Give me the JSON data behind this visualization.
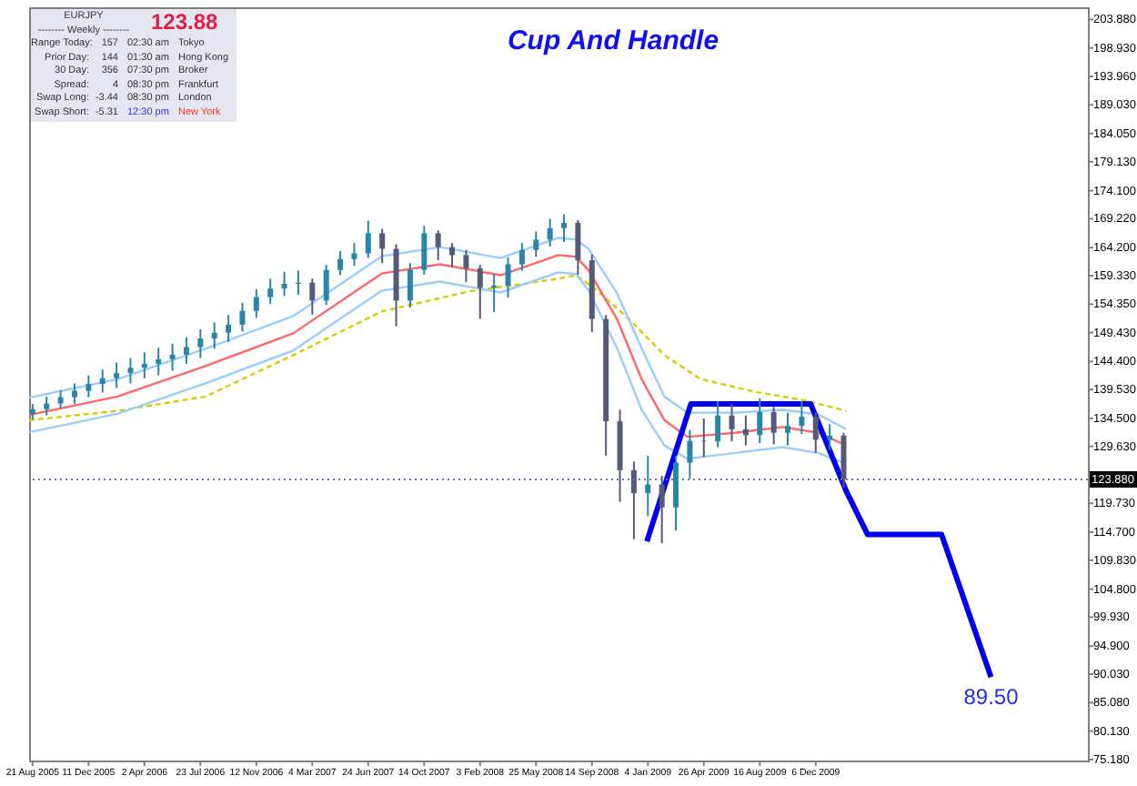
{
  "chart_data": {
    "type": "candlestick",
    "title": "Cup And Handle",
    "xlim": [
      "2005-08-14",
      "2011-06-04"
    ],
    "ylim": [
      75,
      206
    ],
    "xticks": [
      {
        "value": "2005-08-21",
        "label": "21 Aug 2005"
      },
      {
        "value": "2005-12-11",
        "label": "11 Dec 2005"
      },
      {
        "value": "2006-04-02",
        "label": "2 Apr 2006"
      },
      {
        "value": "2006-07-23",
        "label": "23 Jul 2006"
      },
      {
        "value": "2006-11-12",
        "label": "12 Nov 2006"
      },
      {
        "value": "2007-03-04",
        "label": "4 Mar 2007"
      },
      {
        "value": "2007-06-24",
        "label": "24 Jun 2007"
      },
      {
        "value": "2007-10-14",
        "label": "14 Oct 2007"
      },
      {
        "value": "2008-02-03",
        "label": "3 Feb 2008"
      },
      {
        "value": "2008-05-25",
        "label": "25 May 2008"
      },
      {
        "value": "2008-09-14",
        "label": "14 Sep 2008"
      },
      {
        "value": "2009-01-04",
        "label": "4 Jan 2009"
      },
      {
        "value": "2009-04-26",
        "label": "26 Apr 2009"
      },
      {
        "value": "2009-08-16",
        "label": "16 Aug 2009"
      },
      {
        "value": "2009-12-06",
        "label": "6 Dec 2009"
      }
    ],
    "yticks": [
      {
        "value": 203.88,
        "label": "203.880"
      },
      {
        "value": 198.93,
        "label": "198.930"
      },
      {
        "value": 193.96,
        "label": "193.960"
      },
      {
        "value": 189.03,
        "label": "189.030"
      },
      {
        "value": 184.05,
        "label": "184.050"
      },
      {
        "value": 179.13,
        "label": "179.130"
      },
      {
        "value": 174.1,
        "label": "174.100"
      },
      {
        "value": 169.22,
        "label": "169.220"
      },
      {
        "value": 164.2,
        "label": "164.200"
      },
      {
        "value": 159.33,
        "label": "159.330"
      },
      {
        "value": 154.35,
        "label": "154.350"
      },
      {
        "value": 149.43,
        "label": "149.430"
      },
      {
        "value": 144.4,
        "label": "144.400"
      },
      {
        "value": 139.53,
        "label": "139.530"
      },
      {
        "value": 134.5,
        "label": "134.500"
      },
      {
        "value": 129.63,
        "label": "129.630"
      },
      {
        "value": 119.73,
        "label": "119.730"
      },
      {
        "value": 114.7,
        "label": "114.700"
      },
      {
        "value": 109.83,
        "label": "109.830"
      },
      {
        "value": 104.8,
        "label": "104.800"
      },
      {
        "value": 99.93,
        "label": "99.930"
      },
      {
        "value": 94.9,
        "label": "94.900"
      },
      {
        "value": 90.03,
        "label": "90.030"
      },
      {
        "value": 85.08,
        "label": "85.080"
      },
      {
        "value": 80.13,
        "label": "80.130"
      },
      {
        "value": 75.18,
        "label": "75.180"
      }
    ],
    "x": [
      "2005-08-21",
      "2005-09-18",
      "2005-10-16",
      "2005-11-13",
      "2005-12-11",
      "2006-01-08",
      "2006-02-05",
      "2006-03-05",
      "2006-04-02",
      "2006-04-30",
      "2006-05-28",
      "2006-06-25",
      "2006-07-23",
      "2006-08-20",
      "2006-09-17",
      "2006-10-15",
      "2006-11-12",
      "2006-12-10",
      "2007-01-07",
      "2007-02-04",
      "2007-03-04",
      "2007-04-01",
      "2007-04-29",
      "2007-05-27",
      "2007-06-24",
      "2007-07-22",
      "2007-08-19",
      "2007-09-16",
      "2007-10-14",
      "2007-11-11",
      "2007-12-09",
      "2008-01-06",
      "2008-02-03",
      "2008-03-02",
      "2008-03-30",
      "2008-04-27",
      "2008-05-25",
      "2008-06-22",
      "2008-07-20",
      "2008-08-17",
      "2008-09-14",
      "2008-10-12",
      "2008-11-09",
      "2008-12-07",
      "2009-01-04",
      "2009-02-01",
      "2009-03-01",
      "2009-03-29",
      "2009-04-26",
      "2009-05-24",
      "2009-06-21",
      "2009-07-19",
      "2009-08-16",
      "2009-09-13",
      "2009-10-11",
      "2009-11-08",
      "2009-12-06",
      "2010-01-03",
      "2010-01-31"
    ],
    "ohlc": [
      [
        135.2,
        137.0,
        134.3,
        136.1
      ],
      [
        136.1,
        138.3,
        135.0,
        137.1
      ],
      [
        137.1,
        139.4,
        136.2,
        138.2
      ],
      [
        138.2,
        140.6,
        137.0,
        139.3
      ],
      [
        139.3,
        142.0,
        138.2,
        140.5
      ],
      [
        140.5,
        143.0,
        139.0,
        141.5
      ],
      [
        141.5,
        144.2,
        139.8,
        142.4
      ],
      [
        142.4,
        145.0,
        140.6,
        143.3
      ],
      [
        143.3,
        146.0,
        141.5,
        144
      ],
      [
        144,
        146.8,
        142.0,
        144.8
      ],
      [
        144.8,
        147.5,
        142.8,
        145.6
      ],
      [
        145.6,
        148.6,
        144.0,
        146.9
      ],
      [
        146.9,
        150.0,
        145.0,
        148.4
      ],
      [
        148.4,
        151.2,
        146.6,
        149.4
      ],
      [
        149.4,
        152.5,
        147.8,
        150.8
      ],
      [
        150.8,
        154.6,
        149.6,
        153.2
      ],
      [
        153.2,
        157.0,
        152.0,
        155.6
      ],
      [
        155.6,
        158.8,
        154.4,
        157.1
      ],
      [
        157.1,
        160.0,
        155.8,
        157.9
      ],
      [
        157.9,
        160.2,
        156.0,
        158.1
      ],
      [
        158.1,
        158.8,
        152.5,
        155
      ],
      [
        155,
        161.2,
        154.2,
        160.3
      ],
      [
        160.3,
        163.6,
        159.4,
        162.2
      ],
      [
        162.2,
        165.0,
        161.0,
        163.2
      ],
      [
        163.2,
        168.9,
        162.4,
        166.7
      ],
      [
        166.7,
        167.5,
        161.5,
        164
      ],
      [
        164,
        164.8,
        150.5,
        155
      ],
      [
        155,
        161.5,
        153.8,
        160.3
      ],
      [
        160.3,
        168.0,
        159.5,
        166.7
      ],
      [
        166.7,
        167.2,
        162.0,
        164.3
      ],
      [
        164.3,
        165.0,
        160.8,
        162.9
      ],
      [
        162.9,
        163.8,
        158.2,
        160.6
      ],
      [
        160.6,
        161.2,
        151.8,
        157.2
      ],
      [
        157.2,
        159.6,
        153.0,
        157.6
      ],
      [
        157.6,
        162.5,
        155.5,
        161.3
      ],
      [
        161.3,
        165.0,
        160.2,
        163.8
      ],
      [
        163.8,
        167.0,
        162.6,
        165.6
      ],
      [
        165.6,
        169.2,
        164.4,
        167.6
      ],
      [
        167.6,
        170.0,
        165.2,
        168.5
      ],
      [
        168.5,
        169.0,
        159.5,
        162
      ],
      [
        162,
        163.0,
        149.5,
        151.8
      ],
      [
        151.8,
        152.5,
        128.0,
        134
      ],
      [
        134,
        136.0,
        120.0,
        125.5
      ],
      [
        125.5,
        127.0,
        113.5,
        121.5
      ],
      [
        121.5,
        128.0,
        117.5,
        123
      ],
      [
        123,
        124.5,
        112.8,
        119
      ],
      [
        119,
        128.0,
        115.0,
        126.8
      ],
      [
        126.8,
        132.5,
        124.0,
        130.6
      ],
      [
        130.6,
        134.5,
        127.8,
        130.5
      ],
      [
        130.5,
        137.5,
        129.5,
        135
      ],
      [
        135,
        137.0,
        130.5,
        132.6
      ],
      [
        132.6,
        135.0,
        129.8,
        131.6
      ],
      [
        131.6,
        138.0,
        130.2,
        135.6
      ],
      [
        135.6,
        136.5,
        130.0,
        132
      ],
      [
        132,
        135.5,
        129.8,
        133.2
      ],
      [
        133.2,
        137.5,
        131.8,
        134.8
      ],
      [
        134.8,
        135.5,
        128.5,
        130.8
      ],
      [
        130.8,
        133.5,
        129.0,
        131.5
      ],
      [
        131.5,
        132.0,
        122.5,
        123.88
      ]
    ],
    "colors": [
      "#2a86a8",
      "#2a86a8",
      "#2a86a8",
      "#2a86a8",
      "#2a86a8",
      "#2a86a8",
      "#2a86a8",
      "#2a86a8",
      "#2a86a8",
      "#2a86a8",
      "#2a86a8",
      "#2a86a8",
      "#2a86a8",
      "#2a86a8",
      "#2a86a8",
      "#2a86a8",
      "#2a86a8",
      "#2a86a8",
      "#2a86a8",
      "#2a86a8",
      "#555a78",
      "#2a86a8",
      "#2a86a8",
      "#2a86a8",
      "#2a86a8",
      "#555a78",
      "#555a78",
      "#2a86a8",
      "#2a86a8",
      "#555a78",
      "#555a78",
      "#555a78",
      "#555a78",
      "#2a86a8",
      "#2a86a8",
      "#2a86a8",
      "#2a86a8",
      "#2a86a8",
      "#2a86a8",
      "#555a78",
      "#555a78",
      "#555a78",
      "#555a78",
      "#555a78",
      "#2a86a8",
      "#555a78",
      "#2a86a8",
      "#2a86a8",
      "#555a78",
      "#2a86a8",
      "#555a78",
      "#555a78",
      "#2a86a8",
      "#555a78",
      "#2a86a8",
      "#2a86a8",
      "#555a78",
      "#2a86a8",
      "#555a78"
    ],
    "series": [
      {
        "type": "line",
        "color": "#d8cc00",
        "line_style": "dashed",
        "x": [
          "2005-08-14",
          "2006-02-07",
          "2006-08-02",
          "2007-01-25",
          "2007-07-21",
          "2008-01-13",
          "2008-07-09",
          "2008-08-13",
          "2008-09-18",
          "2008-11-27",
          "2009-02-06",
          "2009-04-18",
          "2009-08-02",
          "2009-11-16",
          "2010-02-05"
        ],
        "values": [
          134.2,
          135.8,
          138.3,
          145.5,
          153.1,
          156.6,
          158.8,
          159.4,
          157.2,
          151.8,
          145.5,
          141.4,
          139.2,
          137.6,
          135.8
        ]
      },
      {
        "type": "line",
        "color": "#99ccff",
        "line_style": "solid",
        "x": [
          "2005-08-14",
          "2006-02-07",
          "2006-08-02",
          "2007-01-25",
          "2007-07-21",
          "2007-11-15",
          "2008-03-15",
          "2008-07-09",
          "2008-08-13",
          "2008-09-07",
          "2008-11-03",
          "2008-12-22",
          "2009-02-06",
          "2009-03-24",
          "2009-06-28",
          "2009-10-01",
          "2009-12-11",
          "2010-02-05"
        ],
        "values": [
          138.1,
          141.3,
          146.6,
          152.3,
          162.7,
          164.3,
          162.4,
          165.9,
          165.6,
          164.0,
          156.3,
          146.8,
          138.3,
          135.5,
          135.5,
          136,
          135.2,
          132.6
        ]
      },
      {
        "type": "line",
        "color": "#ff6666",
        "line_style": "solid",
        "x": [
          "2005-08-14",
          "2006-02-07",
          "2006-08-02",
          "2007-01-25",
          "2007-07-21",
          "2007-11-15",
          "2008-03-15",
          "2008-07-09",
          "2008-08-13",
          "2008-09-07",
          "2008-11-03",
          "2008-12-22",
          "2009-02-06",
          "2009-03-24",
          "2009-06-28",
          "2009-10-01",
          "2009-12-11",
          "2010-02-05"
        ],
        "values": [
          135.1,
          138.3,
          143.6,
          149.3,
          159.7,
          161.3,
          159.4,
          162.9,
          162.6,
          160.3,
          151.8,
          141.4,
          134.2,
          131.3,
          132,
          133,
          132,
          129.8
        ]
      },
      {
        "type": "line",
        "color": "#99ccff",
        "line_style": "solid",
        "x": [
          "2005-08-14",
          "2006-02-07",
          "2006-08-02",
          "2007-01-25",
          "2007-07-21",
          "2007-11-15",
          "2008-03-15",
          "2008-07-09",
          "2008-08-13",
          "2008-09-07",
          "2008-11-03",
          "2008-12-22",
          "2009-02-06",
          "2009-03-24",
          "2009-06-28",
          "2009-10-01",
          "2009-12-11",
          "2010-02-05"
        ],
        "values": [
          132.1,
          135.3,
          140.6,
          146.3,
          156.7,
          158.3,
          156.4,
          159.9,
          159.6,
          156.8,
          146.8,
          136.1,
          129.8,
          127.5,
          128.5,
          129.5,
          128.5,
          126.6
        ]
      },
      {
        "type": "line",
        "color": "#0000ee",
        "line_style": "solid",
        "x": [
          "2009-01-02",
          "2009-03-31",
          "2009-11-26",
          "2010-02-05",
          "2010-03-20",
          "2010-08-15",
          "2010-11-22"
        ],
        "values": [
          113.1,
          137,
          137,
          121.9,
          114.3,
          114.3,
          89.5
        ]
      }
    ],
    "ref_lines": [
      {
        "axis": "y",
        "value": 123.88,
        "label": "123.880",
        "color": "#7070a0",
        "line_style": "dotted"
      }
    ],
    "annotations": [
      "EURJPY",
      "-------- Weekly --------",
      "123.88",
      "Range Today:",
      "157",
      "02:30 am",
      "Tokyo",
      "Prior Day:",
      "144",
      "01:30 am",
      "Hong Kong",
      "30 Day:",
      "356",
      "07:30 pm",
      "Broker",
      "Spread:",
      "4",
      "08:30 pm",
      "Frankfurt",
      "Swap Long:",
      "-3.44",
      "08:30 pm",
      "London",
      "Swap Short:",
      "-5.31",
      "12:30 pm",
      "New York",
      {
        "text": "89.50",
        "x": "2010-11-22",
        "y": 89.5
      }
    ],
    "grid": false
  }
}
